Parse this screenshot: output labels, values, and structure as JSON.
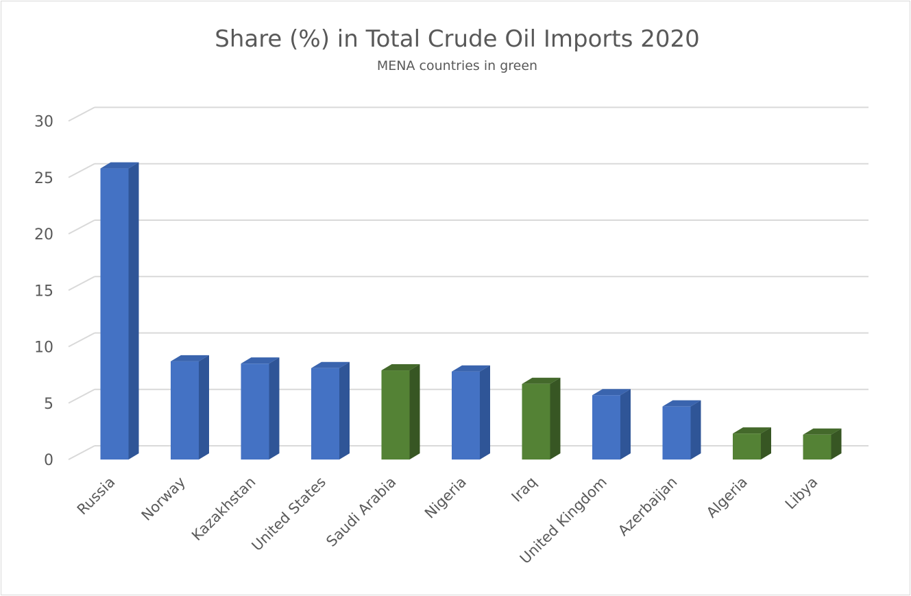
{
  "chart_data": {
    "type": "bar",
    "title": "Share (%) in Total Crude Oil Imports 2020",
    "subtitle": "MENA countries in green",
    "categories": [
      "Russia",
      "Norway",
      "Kazakhstan",
      "United States",
      "Saudi Arabia",
      "Nigeria",
      "Iraq",
      "United Kingdom",
      "Azerbaijan",
      "Algeria",
      "Libya"
    ],
    "values": [
      25.8,
      8.7,
      8.5,
      8.1,
      7.9,
      7.8,
      6.7,
      5.7,
      4.7,
      2.3,
      2.2
    ],
    "mena": [
      false,
      false,
      false,
      false,
      true,
      false,
      true,
      false,
      false,
      true,
      true
    ],
    "ylim": [
      0,
      30
    ],
    "yticks": [
      0,
      5,
      10,
      15,
      20,
      25,
      30
    ],
    "grid": true,
    "colors": {
      "default_front": "#4472c4",
      "default_side": "#2f5597",
      "default_top": "#3a64ae",
      "mena_front": "#548235",
      "mena_side": "#375623",
      "mena_top": "#44692b",
      "grid": "#d9d9d9",
      "text": "#595959"
    }
  }
}
